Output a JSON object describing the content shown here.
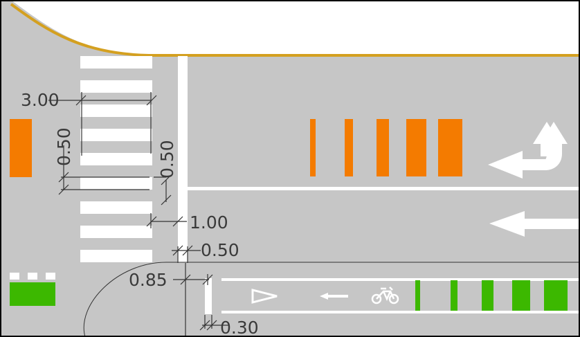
{
  "colors": {
    "road": "#c6c6c6",
    "curb": "#d4a020",
    "marking_white": "#ffffff",
    "marking_orange": "#f47b00",
    "marking_green": "#3cb800",
    "dimension_line": "#333333"
  },
  "dimensions": {
    "crosswalk_width": "3.00",
    "stripe_width_left": "0.50",
    "stripe_gap": "0.50",
    "stop_line_offset": "1.00",
    "stop_line_width": "0.50",
    "bike_lane_offset": "0.85",
    "bike_stop_line_width": "0.30"
  },
  "icons": {
    "lane_arrow_straight_right": "turn-arrow-icon",
    "lane_arrow_left": "left-arrow-icon",
    "bike_lane_triangle": "yield-triangle-icon",
    "bike_lane_arrow": "small-left-arrow-icon",
    "bike_symbol": "bicycle-icon"
  }
}
